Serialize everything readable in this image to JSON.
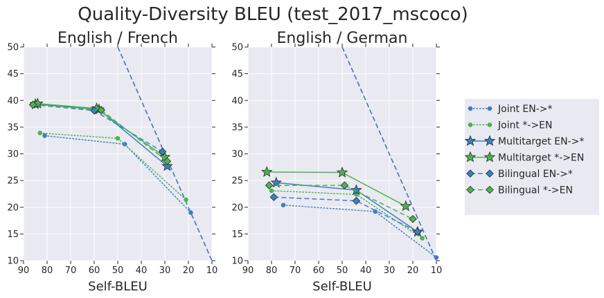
{
  "suptitle": "Quality-Diversity BLEU (test_2017_mscoco)",
  "colors": {
    "blue": "#3b7fc4",
    "green": "#4cb34c",
    "panel_bg": "#e9e9f1",
    "grid": "#ffffff",
    "diag": "#4472b8"
  },
  "legend": [
    {
      "label": "Joint EN->*",
      "color": "blue",
      "line": "dotted",
      "marker": "circle"
    },
    {
      "label": "Joint *->EN",
      "color": "green",
      "line": "dotted",
      "marker": "circle"
    },
    {
      "label": "Multitarget EN->*",
      "color": "blue",
      "line": "solid",
      "marker": "star"
    },
    {
      "label": "Multitarget *->EN",
      "color": "green",
      "line": "solid",
      "marker": "star"
    },
    {
      "label": "Bilingual EN->*",
      "color": "blue",
      "line": "dashed",
      "marker": "diamond"
    },
    {
      "label": "Bilingual *->EN",
      "color": "green",
      "line": "dashed",
      "marker": "diamond"
    }
  ],
  "chart_data": [
    {
      "type": "line",
      "title": "English / French",
      "xlabel": "Self-BLEU",
      "ylabel": "",
      "xlim": [
        90,
        10
      ],
      "ylim": [
        10,
        50
      ],
      "xticks": [
        90,
        80,
        70,
        60,
        50,
        40,
        30,
        20,
        10
      ],
      "yticks": [
        10,
        15,
        20,
        25,
        30,
        35,
        40,
        45,
        50
      ],
      "diagonal": [
        [
          50,
          50
        ],
        [
          10,
          10
        ]
      ],
      "series": [
        {
          "name": "Joint EN->*",
          "x": [
            81,
            47,
            19
          ],
          "y": [
            33.4,
            31.8,
            19.0
          ]
        },
        {
          "name": "Joint *->EN",
          "x": [
            83,
            50,
            21
          ],
          "y": [
            33.9,
            32.9,
            21.4
          ]
        },
        {
          "name": "Multitarget EN->*",
          "x": [
            85,
            58,
            29
          ],
          "y": [
            39.3,
            38.3,
            27.7
          ]
        },
        {
          "name": "Multitarget *->EN",
          "x": [
            84,
            59,
            30
          ],
          "y": [
            39.4,
            38.5,
            29.4
          ]
        },
        {
          "name": "Bilingual EN->*",
          "x": [
            86,
            60,
            31
          ],
          "y": [
            39.2,
            38.1,
            30.4
          ]
        },
        {
          "name": "Bilingual *->EN",
          "x": [
            86,
            57,
            29
          ],
          "y": [
            39.2,
            38.2,
            28.6
          ]
        }
      ]
    },
    {
      "type": "line",
      "title": "English / German",
      "xlabel": "Self-BLEU",
      "ylabel": "",
      "xlim": [
        90,
        10
      ],
      "ylim": [
        10,
        50
      ],
      "xticks": [
        90,
        80,
        70,
        60,
        50,
        40,
        30,
        20,
        10
      ],
      "yticks": [
        10,
        15,
        20,
        25,
        30,
        35,
        40,
        45,
        50
      ],
      "diagonal": [
        [
          50,
          50
        ],
        [
          10,
          10
        ]
      ],
      "series": [
        {
          "name": "Joint EN->*",
          "x": [
            75,
            36,
            10
          ],
          "y": [
            20.4,
            19.2,
            10.6
          ]
        },
        {
          "name": "Joint *->EN",
          "x": [
            80,
            44,
            16
          ],
          "y": [
            23.1,
            22.4,
            14.2
          ]
        },
        {
          "name": "Multitarget EN->*",
          "x": [
            78,
            44,
            18
          ],
          "y": [
            24.6,
            23.2,
            15.4
          ]
        },
        {
          "name": "Multitarget *->EN",
          "x": [
            82,
            50,
            23
          ],
          "y": [
            26.6,
            26.5,
            20.2
          ]
        },
        {
          "name": "Bilingual EN->*",
          "x": [
            79,
            44,
            18
          ],
          "y": [
            21.9,
            21.2,
            15.4
          ]
        },
        {
          "name": "Bilingual *->EN",
          "x": [
            81,
            49,
            20
          ],
          "y": [
            24.1,
            24.1,
            17.8
          ]
        }
      ]
    }
  ]
}
